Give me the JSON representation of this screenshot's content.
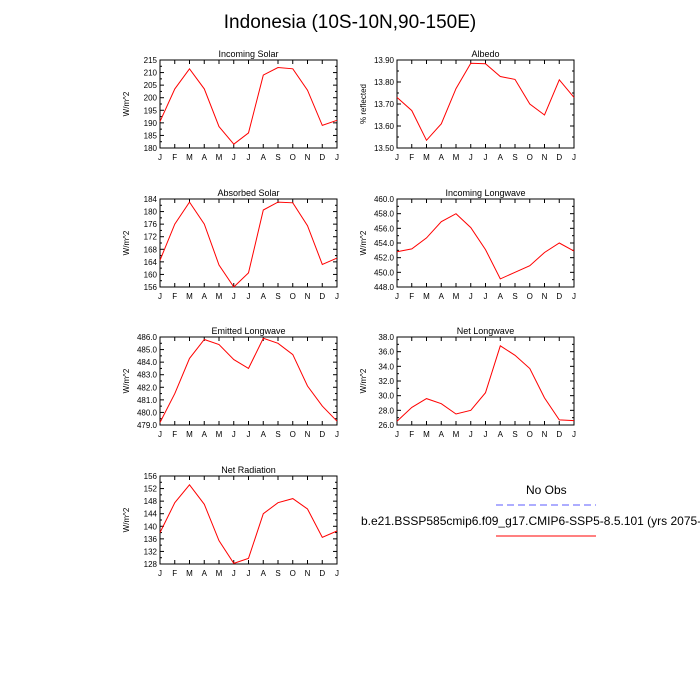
{
  "title": "Indonesia (10S-10N,90-150E)",
  "legend": {
    "obs_label": "No Obs",
    "obs_color": "#5b5bff",
    "case_label": "b.e21.BSSP585cmip6.f09_g17.CMIP6-SSP5-8.5.101 (yrs 2075-",
    "case_color": "#ff0000"
  },
  "months": [
    "J",
    "F",
    "M",
    "A",
    "M",
    "J",
    "J",
    "A",
    "S",
    "O",
    "N",
    "D",
    "J"
  ],
  "chart_data": [
    {
      "type": "line",
      "title": "Incoming Solar",
      "ylabel": "W/m^2",
      "ylim": [
        180,
        215
      ],
      "yticks": [
        "180",
        "185",
        "190",
        "195",
        "200",
        "205",
        "210",
        "215"
      ],
      "series": [
        {
          "values": [
            190.5,
            203.5,
            211.5,
            203.5,
            188.5,
            181.5,
            186,
            209,
            212,
            211.5,
            203,
            189,
            191
          ]
        }
      ]
    },
    {
      "type": "line",
      "title": "Albedo",
      "ylabel": "% reflected",
      "ylim": [
        13.5,
        13.9
      ],
      "yticks": [
        "13.50",
        "13.60",
        "13.70",
        "13.80",
        "13.90"
      ],
      "series": [
        {
          "values": [
            13.73,
            13.67,
            13.535,
            13.61,
            13.77,
            13.885,
            13.883,
            13.825,
            13.812,
            13.7,
            13.65,
            13.81,
            13.73
          ]
        }
      ]
    },
    {
      "type": "line",
      "title": "Absorbed Solar",
      "ylabel": "W/m^2",
      "ylim": [
        156,
        184
      ],
      "yticks": [
        "156",
        "160",
        "164",
        "168",
        "172",
        "176",
        "180",
        "184"
      ],
      "series": [
        {
          "values": [
            164.5,
            176,
            183,
            176,
            163,
            156,
            160.5,
            180.5,
            183,
            182.8,
            175.5,
            163.2,
            165.2
          ]
        }
      ]
    },
    {
      "type": "line",
      "title": "Incoming Longwave",
      "ylabel": "W/m^2",
      "ylim": [
        448,
        460
      ],
      "yticks": [
        "448.0",
        "450.0",
        "452.0",
        "454.0",
        "456.0",
        "458.0",
        "460.0"
      ],
      "series": [
        {
          "values": [
            452.8,
            453.2,
            454.7,
            456.9,
            458.0,
            456.1,
            453.1,
            449.1,
            450.0,
            450.9,
            452.7,
            454.0,
            452.9
          ]
        }
      ]
    },
    {
      "type": "line",
      "title": "Emitted Longwave",
      "ylabel": "W/m^2",
      "ylim": [
        479,
        486
      ],
      "yticks": [
        "479.0",
        "480.0",
        "481.0",
        "482.0",
        "483.0",
        "484.0",
        "485.0",
        "486.0"
      ],
      "series": [
        {
          "values": [
            479.2,
            481.5,
            484.3,
            485.8,
            485.4,
            484.2,
            483.5,
            485.9,
            485.5,
            484.6,
            482.1,
            480.5,
            479.3
          ]
        }
      ]
    },
    {
      "type": "line",
      "title": "Net Longwave",
      "ylabel": "W/m^2",
      "ylim": [
        26,
        38
      ],
      "yticks": [
        "26.0",
        "28.0",
        "30.0",
        "32.0",
        "34.0",
        "36.0",
        "38.0"
      ],
      "series": [
        {
          "values": [
            26.5,
            28.4,
            29.6,
            28.9,
            27.5,
            28.0,
            30.4,
            36.8,
            35.5,
            33.7,
            29.7,
            26.7,
            26.6
          ]
        }
      ]
    },
    {
      "type": "line",
      "title": "Net Radiation",
      "ylabel": "W/m^2",
      "ylim": [
        128,
        156
      ],
      "yticks": [
        "128",
        "132",
        "136",
        "140",
        "144",
        "148",
        "152",
        "156"
      ],
      "series": [
        {
          "values": [
            138,
            147.5,
            153.2,
            147,
            135.4,
            128.2,
            129.8,
            144,
            147.5,
            148.8,
            145.5,
            136.5,
            138.5
          ]
        }
      ]
    }
  ]
}
